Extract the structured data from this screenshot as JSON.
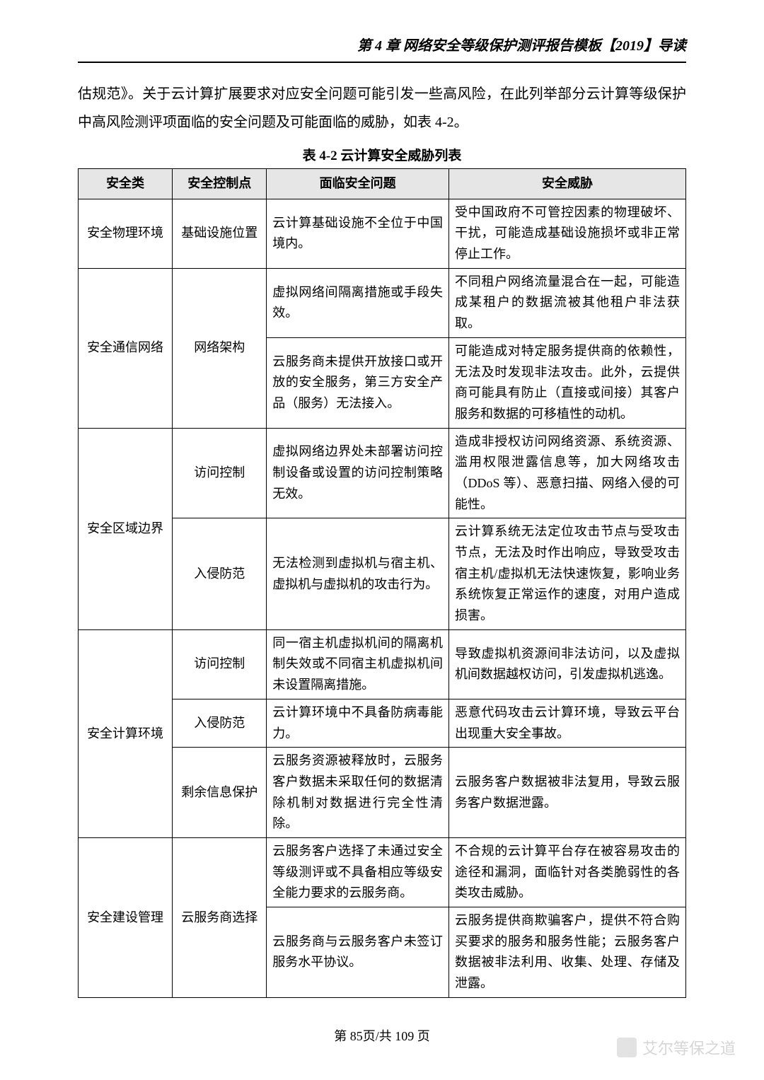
{
  "header": {
    "chapter_title": "第 4 章  网络安全等级保护测评报告模板【2019】导读"
  },
  "intro_paragraph": "估规范》。关于云计算扩展要求对应安全问题可能引发一些高风险，在此列举部分云计算等级保护中高风险测评项面临的安全问题及可能面临的威胁，如表 4-2。",
  "table": {
    "caption": "表 4-2  云计算安全威胁列表",
    "headers": {
      "col1": "安全类",
      "col2": "安全控制点",
      "col3": "面临安全问题",
      "col4": "安全威胁"
    },
    "rows": {
      "r1": {
        "cat": "安全物理环境",
        "cp": "基础设施位置",
        "issue": "云计算基础设施不全位于中国境内。",
        "threat": "受中国政府不可管控因素的物理破坏、干扰，可能造成基础设施损坏或非正常停止工作。"
      },
      "r2": {
        "cat": "安全通信网络",
        "cp": "网络架构",
        "issue": "虚拟网络间隔离措施或手段失效。",
        "threat": "不同租户网络流量混合在一起，可能造成某租户的数据流被其他租户非法获取。"
      },
      "r3": {
        "issue": "云服务商未提供开放接口或开放的安全服务，第三方安全产品（服务）无法接入。",
        "threat": "可能造成对特定服务提供商的依赖性，无法及时发现非法攻击。此外，云提供商可能具有防止（直接或间接）其客户服务和数据的可移植性的动机。"
      },
      "r4": {
        "cat": "安全区域边界",
        "cp": "访问控制",
        "issue": "虚拟网络边界处未部署访问控制设备或设置的访问控制策略无效。",
        "threat": "造成非授权访问网络资源、系统资源、滥用权限泄露信息等，加大网络攻击（DDoS 等）、恶意扫描、网络入侵的可能性。"
      },
      "r5": {
        "cp": "入侵防范",
        "issue": "无法检测到虚拟机与宿主机、虚拟机与虚拟机的攻击行为。",
        "threat": "云计算系统无法定位攻击节点与受攻击节点，无法及时作出响应，导致受攻击宿主机/虚拟机无法快速恢复，影响业务系统恢复正常运作的速度，对用户造成损害。"
      },
      "r6": {
        "cat": "安全计算环境",
        "cp": "访问控制",
        "issue": "同一宿主机虚拟机间的隔离机制失效或不同宿主机虚拟机间未设置隔离措施。",
        "threat": "导致虚拟机资源间非法访问，以及虚拟机间数据越权访问，引发虚拟机逃逸。"
      },
      "r7": {
        "cp": "入侵防范",
        "issue": "云计算环境中不具备防病毒能力。",
        "threat": "恶意代码攻击云计算环境，导致云平台出现重大安全事故。"
      },
      "r8": {
        "cp": "剩余信息保护",
        "issue": "云服务资源被释放时，云服务客户数据未采取任何的数据清除机制对数据进行完全性清除。",
        "threat": "云服务客户数据被非法复用，导致云服务客户数据泄露。"
      },
      "r9": {
        "cat": "安全建设管理",
        "cp": "云服务商选择",
        "issue": "云服务客户选择了未通过安全等级测评或不具备相应等级安全能力要求的云服务商。",
        "threat": "不合规的云计算平台存在被容易攻击的途径和漏洞，面临针对各类脆弱性的各类攻击威胁。"
      },
      "r10": {
        "issue": "云服务商与云服务客户未签订服务水平协议。",
        "threat": "云服务提供商欺骗客户，提供不符合购买要求的服务和服务性能；云服务客户数据被非法利用、收集、处理、存储及泄露。"
      }
    }
  },
  "footer": {
    "page_number": "第 85页/共 109 页"
  },
  "watermark": {
    "text": "艾尔等保之道"
  }
}
